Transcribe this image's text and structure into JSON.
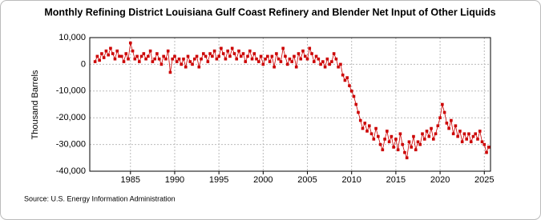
{
  "chart_data": {
    "type": "line",
    "title": "Monthly Refining District Louisiana Gulf Coast Refinery and Blender Net Input of Other Liquids",
    "y_label": "Thousand Barrels",
    "source": "Source: U.S. Energy Information Administration",
    "color": "#cc0000",
    "markers": true,
    "grid": true,
    "xlim": [
      1980.4,
      2025.7
    ],
    "ylim": [
      -40000,
      10000
    ],
    "xticks": [
      1985,
      1990,
      1995,
      2000,
      2005,
      2010,
      2015,
      2020,
      2025
    ],
    "yticks": [
      {
        "value": 10000,
        "label": "10,000"
      },
      0,
      {
        "value": -10000,
        "label": "-10,000"
      },
      {
        "value": -20000,
        "label": "-20,000"
      },
      {
        "value": -30000,
        "label": "-30,000"
      },
      {
        "value": -40000,
        "label": "-40,000"
      }
    ],
    "x": [
      1981,
      1981.25,
      1981.5,
      1981.75,
      1982,
      1982.25,
      1982.5,
      1982.75,
      1983,
      1983.25,
      1983.5,
      1983.75,
      1984,
      1984.25,
      1984.5,
      1984.75,
      1985,
      1985.25,
      1985.5,
      1985.75,
      1986,
      1986.25,
      1986.5,
      1986.75,
      1987,
      1987.25,
      1987.5,
      1987.75,
      1988,
      1988.25,
      1988.5,
      1988.75,
      1989,
      1989.25,
      1989.5,
      1989.75,
      1990,
      1990.25,
      1990.5,
      1990.75,
      1991,
      1991.25,
      1991.5,
      1991.75,
      1992,
      1992.25,
      1992.5,
      1992.75,
      1993,
      1993.25,
      1993.5,
      1993.75,
      1994,
      1994.25,
      1994.5,
      1994.75,
      1995,
      1995.25,
      1995.5,
      1995.75,
      1996,
      1996.25,
      1996.5,
      1996.75,
      1997,
      1997.25,
      1997.5,
      1997.75,
      1998,
      1998.25,
      1998.5,
      1998.75,
      1999,
      1999.25,
      1999.5,
      1999.75,
      2000,
      2000.25,
      2000.5,
      2000.75,
      2001,
      2001.25,
      2001.5,
      2001.75,
      2002,
      2002.25,
      2002.5,
      2002.75,
      2003,
      2003.25,
      2003.5,
      2003.75,
      2004,
      2004.25,
      2004.5,
      2004.75,
      2005,
      2005.25,
      2005.5,
      2005.75,
      2006,
      2006.25,
      2006.5,
      2006.75,
      2007,
      2007.25,
      2007.5,
      2007.75,
      2008,
      2008.25,
      2008.5,
      2008.75,
      2009,
      2009.25,
      2009.5,
      2009.75,
      2010,
      2010.25,
      2010.5,
      2010.75,
      2011,
      2011.25,
      2011.5,
      2011.75,
      2012,
      2012.25,
      2012.5,
      2012.75,
      2013,
      2013.25,
      2013.5,
      2013.75,
      2014,
      2014.25,
      2014.5,
      2014.75,
      2015,
      2015.25,
      2015.5,
      2015.75,
      2016,
      2016.25,
      2016.5,
      2016.75,
      2017,
      2017.25,
      2017.5,
      2017.75,
      2018,
      2018.25,
      2018.5,
      2018.75,
      2019,
      2019.25,
      2019.5,
      2019.75,
      2020,
      2020.25,
      2020.5,
      2020.75,
      2021,
      2021.25,
      2021.5,
      2021.75,
      2022,
      2022.25,
      2022.5,
      2022.75,
      2023,
      2023.25,
      2023.5,
      2023.75,
      2024,
      2024.25,
      2024.5,
      2024.75,
      2025,
      2025.25,
      2025.5
    ],
    "values": [
      1000,
      3000,
      1500,
      4000,
      2500,
      5000,
      3500,
      6000,
      4000,
      2000,
      5000,
      3000,
      3000,
      1000,
      4000,
      2000,
      8000,
      5000,
      2000,
      3000,
      1000,
      3000,
      4000,
      2000,
      3000,
      5000,
      1000,
      2000,
      4000,
      2000,
      0,
      3000,
      2000,
      5000,
      -3000,
      2000,
      3000,
      1000,
      2000,
      0,
      2000,
      -1000,
      3000,
      1000,
      0,
      2000,
      3000,
      -1000,
      2000,
      4000,
      3000,
      1000,
      4000,
      3000,
      5000,
      2000,
      3000,
      6000,
      4000,
      2000,
      5000,
      3000,
      6000,
      4000,
      2000,
      5000,
      3000,
      4000,
      1000,
      3000,
      5000,
      2000,
      4000,
      2000,
      1000,
      3000,
      0,
      2000,
      3000,
      1000,
      3000,
      -1000,
      4000,
      2000,
      1000,
      6000,
      3000,
      0,
      2000,
      1000,
      3000,
      -1000,
      4000,
      2000,
      5000,
      3000,
      2000,
      6000,
      4000,
      1000,
      3000,
      2000,
      0,
      1000,
      -1000,
      2000,
      0,
      1000,
      4000,
      2000,
      -1000,
      0,
      -4000,
      -6000,
      -5000,
      -8000,
      -10000,
      -12000,
      -15000,
      -18000,
      -21000,
      -24000,
      -22000,
      -25000,
      -23000,
      -26000,
      -28000,
      -24000,
      -27000,
      -30000,
      -32000,
      -28000,
      -25000,
      -29000,
      -27000,
      -31000,
      -28000,
      -32000,
      -26000,
      -30000,
      -33000,
      -35000,
      -29000,
      -31000,
      -27000,
      -32000,
      -29000,
      -30000,
      -26000,
      -28000,
      -25000,
      -27000,
      -24000,
      -28000,
      -26000,
      -23000,
      -20000,
      -15000,
      -18000,
      -22000,
      -24000,
      -21000,
      -26000,
      -23000,
      -27000,
      -25000,
      -29000,
      -26000,
      -28000,
      -26000,
      -29000,
      -27000,
      -26000,
      -28000,
      -25000,
      -29000,
      -30000,
      -33000,
      -31000
    ]
  }
}
